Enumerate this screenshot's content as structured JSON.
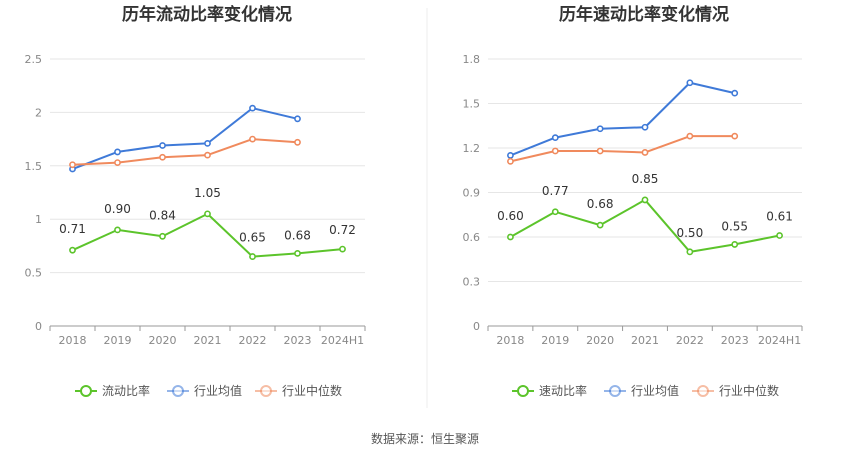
{
  "source": "数据来源：恒生聚源",
  "chart_data": [
    {
      "type": "line",
      "title": "历年流动比率变化情况",
      "categories": [
        "2018",
        "2019",
        "2020",
        "2021",
        "2022",
        "2023",
        "2024H1"
      ],
      "ylim": [
        0,
        2.5
      ],
      "yticks": [
        "0",
        "0.5",
        "1",
        "1.5",
        "2",
        "2.5"
      ],
      "grid": true,
      "legend_position": "bottom",
      "series": [
        {
          "name": "流动比率",
          "color": "#5cc42b",
          "values": [
            0.71,
            0.9,
            0.84,
            1.05,
            0.65,
            0.68,
            0.72
          ],
          "labels": [
            "0.71",
            "0.90",
            "0.84",
            "1.05",
            "0.65",
            "0.68",
            "0.72"
          ]
        },
        {
          "name": "行业均值",
          "color": "#3f7ad8",
          "values": [
            1.47,
            1.63,
            1.69,
            1.71,
            2.04,
            1.94,
            null
          ]
        },
        {
          "name": "行业中位数",
          "color": "#f08a5d",
          "values": [
            1.51,
            1.53,
            1.58,
            1.6,
            1.75,
            1.72,
            null
          ]
        }
      ]
    },
    {
      "type": "line",
      "title": "历年速动比率变化情况",
      "categories": [
        "2018",
        "2019",
        "2020",
        "2021",
        "2022",
        "2023",
        "2024H1"
      ],
      "ylim": [
        0,
        1.8
      ],
      "yticks": [
        "0",
        "0.3",
        "0.6",
        "0.9",
        "1.2",
        "1.5",
        "1.8"
      ],
      "grid": true,
      "legend_position": "bottom",
      "series": [
        {
          "name": "速动比率",
          "color": "#5cc42b",
          "values": [
            0.6,
            0.77,
            0.68,
            0.85,
            0.5,
            0.55,
            0.61
          ],
          "labels": [
            "0.60",
            "0.77",
            "0.68",
            "0.85",
            "0.50",
            "0.55",
            "0.61"
          ]
        },
        {
          "name": "行业均值",
          "color": "#3f7ad8",
          "values": [
            1.15,
            1.27,
            1.33,
            1.34,
            1.64,
            1.57,
            null
          ]
        },
        {
          "name": "行业中位数",
          "color": "#f08a5d",
          "values": [
            1.11,
            1.18,
            1.18,
            1.17,
            1.28,
            1.28,
            null
          ]
        }
      ]
    }
  ]
}
